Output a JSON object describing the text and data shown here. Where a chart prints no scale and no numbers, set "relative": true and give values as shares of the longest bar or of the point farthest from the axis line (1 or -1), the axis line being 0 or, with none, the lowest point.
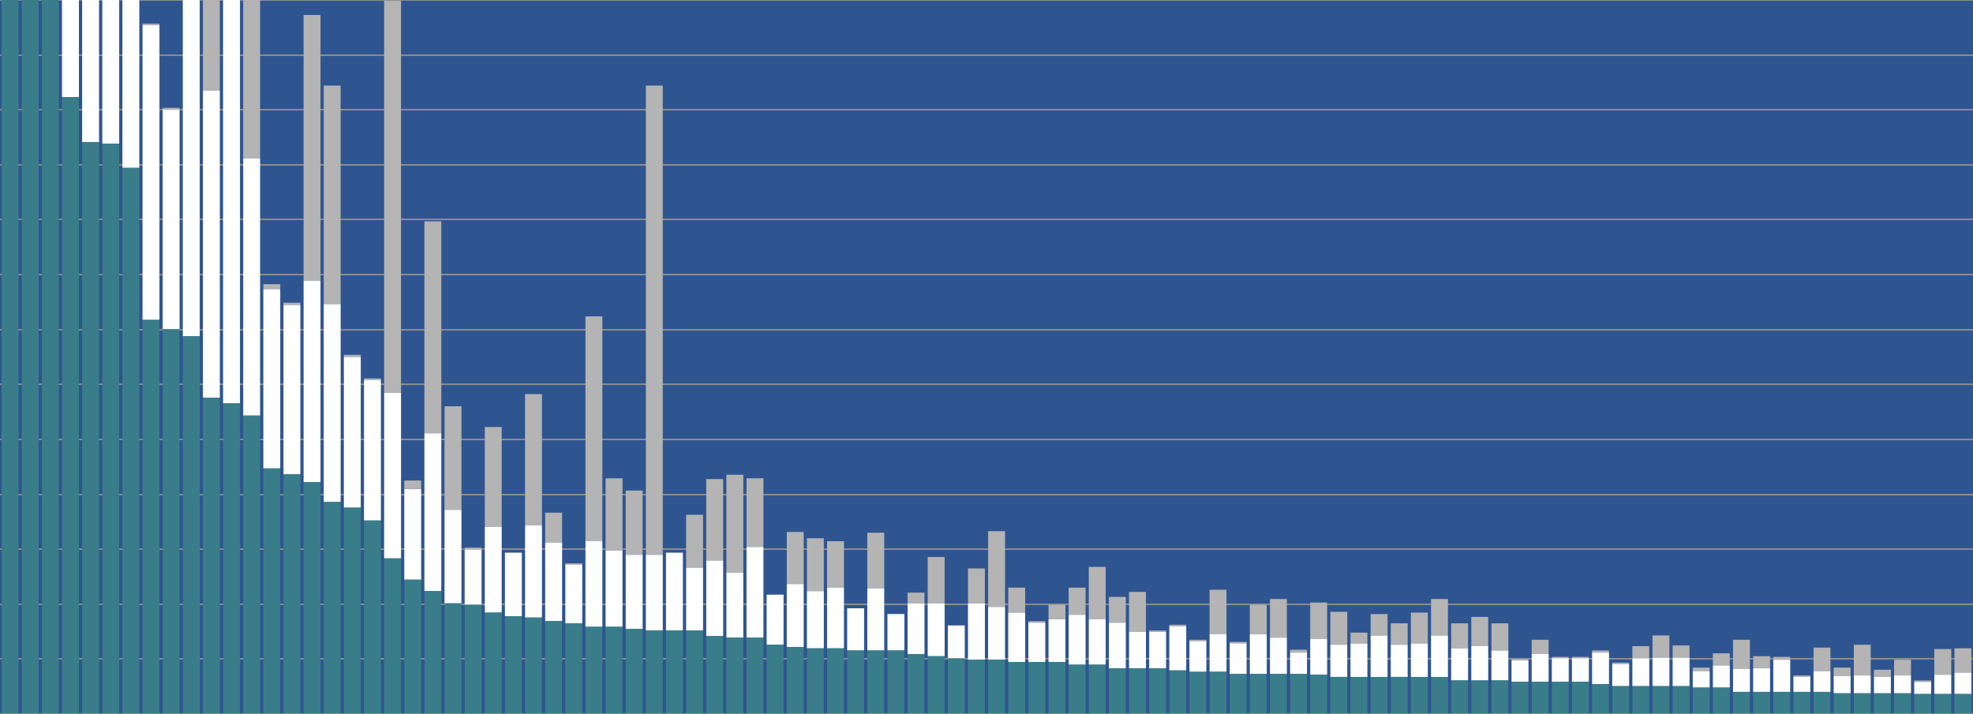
{
  "chart_data": {
    "type": "bar",
    "stacked": true,
    "relative": true,
    "grid": "y",
    "legend": false,
    "categories": [
      null,
      null,
      null,
      null,
      null,
      null,
      null,
      null,
      null,
      null,
      null,
      null,
      null,
      null,
      null,
      null,
      null,
      null,
      null,
      null,
      null,
      null,
      null,
      null,
      null,
      null,
      null,
      null,
      null,
      null,
      null,
      null,
      null,
      null,
      null,
      null,
      null,
      null,
      null,
      null,
      null,
      null,
      null,
      null,
      null,
      null,
      null,
      null,
      null,
      null,
      null,
      null,
      null,
      null,
      null,
      null,
      null,
      null,
      null,
      null,
      null,
      null,
      null,
      null,
      null,
      null,
      null,
      null,
      null,
      null,
      null,
      null,
      null,
      null,
      null,
      null,
      null,
      null,
      null,
      null,
      null,
      null,
      null,
      null,
      null,
      null,
      null,
      null,
      null,
      null,
      null,
      null,
      null,
      null,
      null,
      null,
      null,
      null
    ],
    "series": [
      {
        "color": "#3a7d8a",
        "values": [
          1,
          1,
          1,
          0.864,
          0.801,
          0.799,
          0.765,
          0.552,
          0.539,
          0.529,
          0.443,
          0.435,
          0.418,
          0.344,
          0.336,
          0.325,
          0.297,
          0.289,
          0.271,
          0.218,
          0.188,
          0.172,
          0.155,
          0.153,
          0.142,
          0.137,
          0.135,
          0.13,
          0.127,
          0.122,
          0.122,
          0.119,
          0.117,
          0.117,
          0.117,
          0.109,
          0.107,
          0.107,
          0.097,
          0.094,
          0.092,
          0.092,
          0.089,
          0.089,
          0.089,
          0.084,
          0.081,
          0.078,
          0.076,
          0.076,
          0.073,
          0.073,
          0.073,
          0.069,
          0.069,
          0.064,
          0.064,
          0.064,
          0.061,
          0.059,
          0.059,
          0.056,
          0.056,
          0.056,
          0.056,
          0.055,
          0.052,
          0.052,
          0.052,
          0.052,
          0.052,
          0.052,
          0.047,
          0.047,
          0.047,
          0.045,
          0.045,
          0.045,
          0.045,
          0.042,
          0.039,
          0.039,
          0.039,
          0.039,
          0.037,
          0.037,
          0.031,
          0.031,
          0.031,
          0.031,
          0.031,
          0.029,
          0.029,
          0.029,
          0.029,
          0.028,
          0.028,
          0.028
        ]
      },
      {
        "color": "#ffffff",
        "values": [
          0,
          0,
          0,
          0.136,
          0.199,
          0.201,
          0.235,
          0.413,
          0.307,
          0.471,
          0.43,
          0.565,
          0.36,
          0.251,
          0.237,
          0.282,
          0.277,
          0.211,
          0.197,
          0.232,
          0.127,
          0.221,
          0.131,
          0.077,
          0.12,
          0.089,
          0.129,
          0.11,
          0.082,
          0.12,
          0.107,
          0.104,
          0.106,
          0.109,
          0.088,
          0.106,
          0.091,
          0.127,
          0.07,
          0.088,
          0.08,
          0.085,
          0.059,
          0.087,
          0.051,
          0.071,
          0.074,
          0.046,
          0.079,
          0.074,
          0.069,
          0.055,
          0.06,
          0.07,
          0.064,
          0.064,
          0.051,
          0.051,
          0.062,
          0.043,
          0.053,
          0.043,
          0.056,
          0.051,
          0.03,
          0.05,
          0.045,
          0.047,
          0.058,
          0.045,
          0.047,
          0.058,
          0.045,
          0.048,
          0.042,
          0.03,
          0.039,
          0.033,
          0.033,
          0.044,
          0.031,
          0.039,
          0.04,
          0.04,
          0.023,
          0.031,
          0.032,
          0.033,
          0.045,
          0.021,
          0.029,
          0.024,
          0.025,
          0.023,
          0.025,
          0.017,
          0.027,
          0.03
        ]
      },
      {
        "color": "#b4b4b4",
        "values": [
          0,
          0,
          0,
          0,
          0,
          0,
          0,
          0.002,
          0.003,
          0,
          0.127,
          0,
          0.222,
          0.007,
          0.003,
          0.372,
          0.306,
          0.003,
          0.002,
          0.549,
          0.012,
          0.297,
          0.145,
          0.003,
          0.14,
          0,
          0.184,
          0.042,
          0.002,
          0.315,
          0.101,
          0.09,
          0.657,
          0,
          0.074,
          0.114,
          0.137,
          0.096,
          0,
          0.073,
          0.074,
          0.065,
          0,
          0.078,
          0,
          0.015,
          0.065,
          0,
          0.049,
          0.106,
          0.035,
          0.002,
          0.02,
          0.038,
          0.073,
          0.036,
          0.056,
          0.002,
          0.002,
          0.002,
          0.062,
          0.002,
          0.041,
          0.054,
          0.004,
          0.051,
          0.046,
          0.015,
          0.03,
          0.03,
          0.043,
          0.051,
          0.035,
          0.041,
          0.038,
          0.002,
          0.02,
          0.002,
          0.002,
          0.003,
          0.002,
          0.017,
          0.031,
          0.017,
          0.005,
          0.017,
          0.041,
          0.017,
          0.004,
          0.002,
          0.033,
          0.012,
          0.043,
          0.01,
          0.022,
          0.002,
          0.036,
          0.034
        ]
      }
    ]
  }
}
